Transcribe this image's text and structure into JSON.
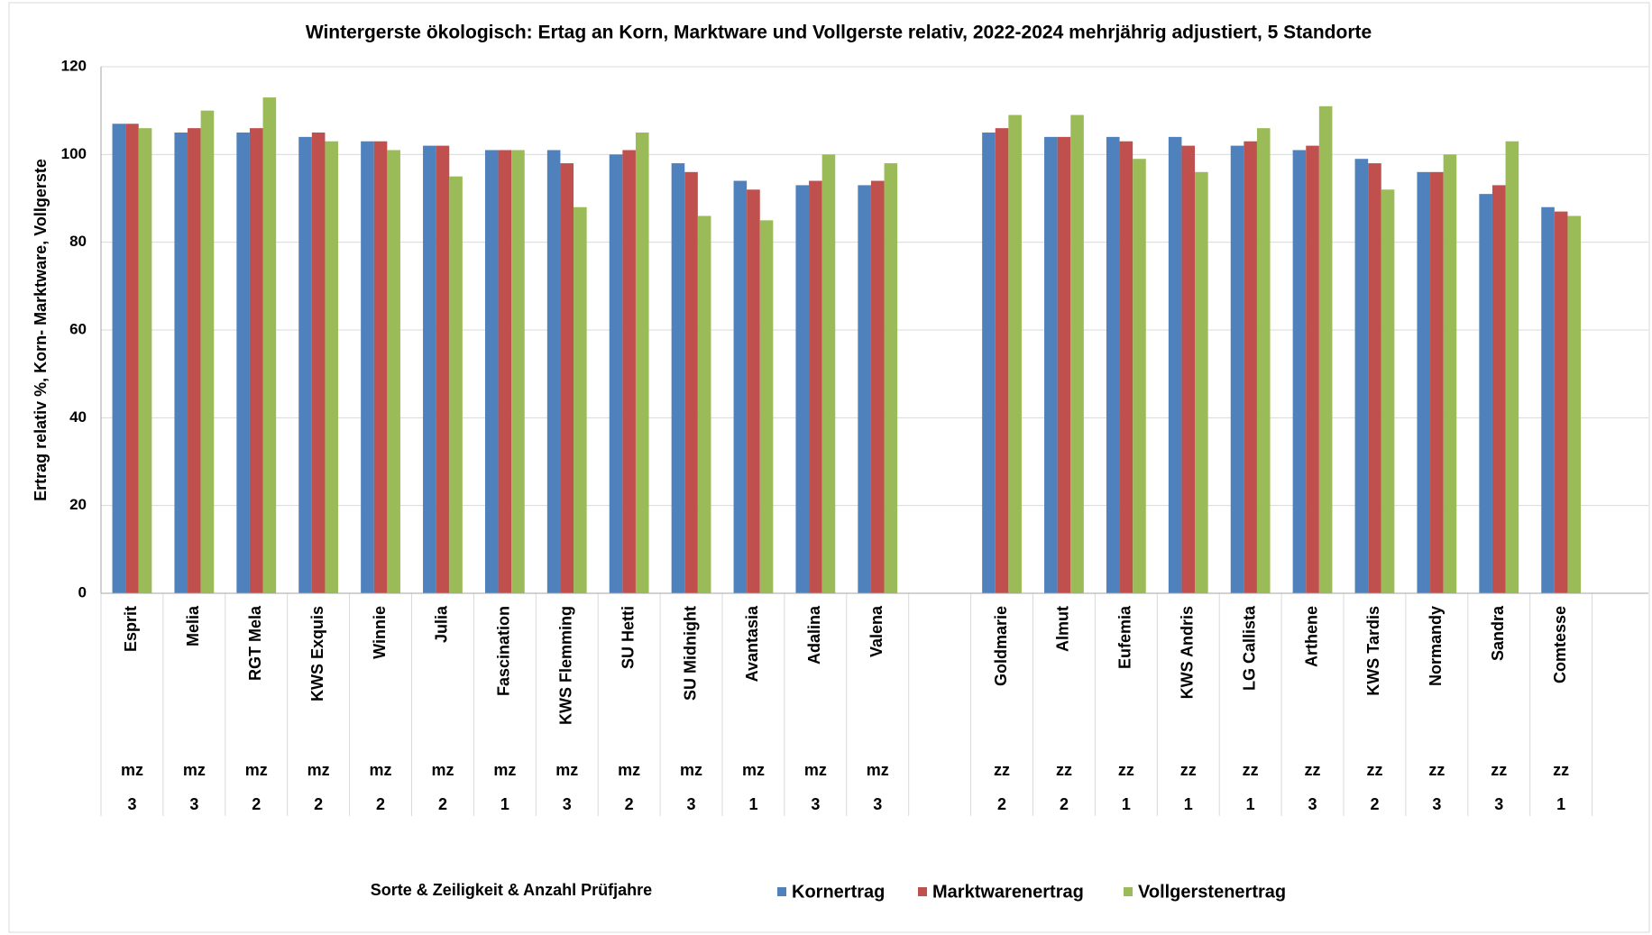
{
  "chart_data": {
    "type": "bar",
    "title": "Wintergerste ökologisch: Ertag an Korn, Marktware und Vollgerste relativ, 2022-2024 mehrjährig adjustiert, 5 Standorte",
    "y_label": "Ertrag relativ %,  Korn- Marktware, Vollgerste",
    "x_label": "Sorte & Zeiligkeit & Anzahl Prüfjahre",
    "categories": [
      "Esprit",
      "Melia",
      "RGT Mela",
      "KWS Exquis",
      "Winnie",
      "Julia",
      "Fascination",
      "KWS Flemming",
      "SU Hetti",
      "SU Midnight",
      "Avantasia",
      "Adalina",
      "Valena",
      null,
      "Goldmarie",
      "Almut",
      "Eufemia",
      "KWS Andris",
      "LG Callista",
      "Arthene",
      "KWS Tardis",
      "Normandy",
      "Sandra",
      "Comtesse"
    ],
    "zeiligkeit": [
      "mz",
      "mz",
      "mz",
      "mz",
      "mz",
      "mz",
      "mz",
      "mz",
      "mz",
      "mz",
      "mz",
      "mz",
      "mz",
      null,
      "zz",
      "zz",
      "zz",
      "zz",
      "zz",
      "zz",
      "zz",
      "zz",
      "zz",
      "zz"
    ],
    "pruefjahre": [
      3,
      3,
      2,
      2,
      2,
      2,
      1,
      3,
      2,
      3,
      1,
      3,
      3,
      null,
      2,
      2,
      1,
      1,
      1,
      3,
      2,
      3,
      3,
      1
    ],
    "series": [
      {
        "name": "Kornertrag",
        "color": "#4f81bd",
        "values": [
          107,
          105,
          105,
          104,
          103,
          102,
          101,
          101,
          100,
          98,
          94,
          93,
          93,
          null,
          105,
          104,
          104,
          104,
          102,
          101,
          99,
          96,
          91,
          88
        ]
      },
      {
        "name": "Marktwarenertrag",
        "color": "#c0504d",
        "values": [
          107,
          106,
          106,
          105,
          103,
          102,
          101,
          98,
          101,
          96,
          92,
          94,
          94,
          null,
          106,
          104,
          103,
          102,
          103,
          102,
          98,
          96,
          93,
          87
        ]
      },
      {
        "name": "Vollgerstenertrag",
        "color": "#9bbb59",
        "values": [
          106,
          110,
          113,
          103,
          101,
          95,
          101,
          88,
          105,
          86,
          85,
          100,
          98,
          null,
          109,
          109,
          99,
          96,
          106,
          111,
          92,
          100,
          103,
          86
        ]
      }
    ],
    "ylim": [
      0,
      120
    ],
    "yticks": [
      0,
      20,
      40,
      60,
      80,
      100,
      120
    ],
    "grid": true
  }
}
